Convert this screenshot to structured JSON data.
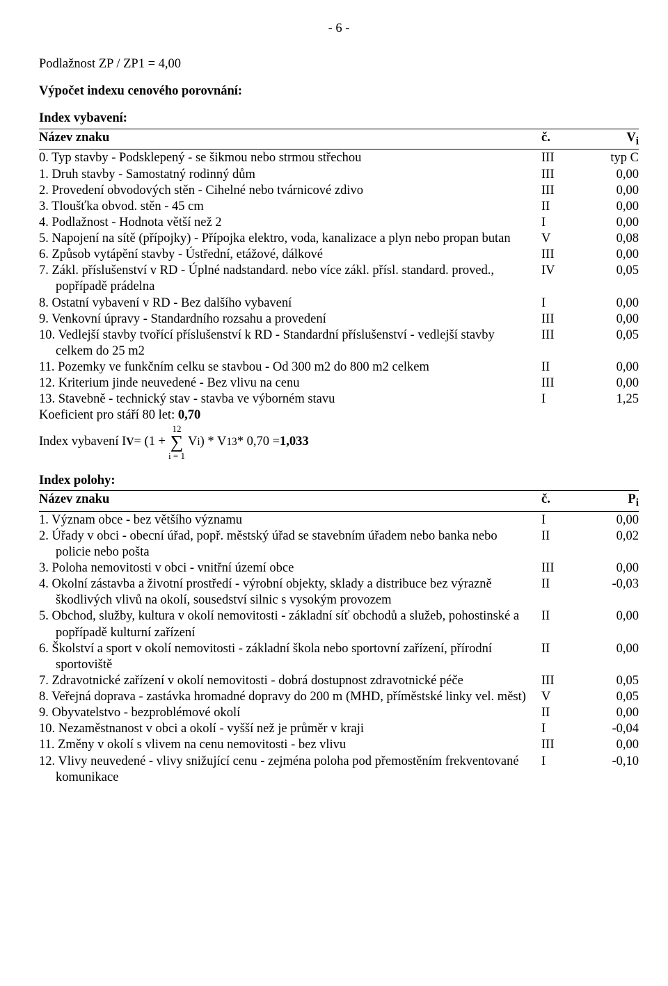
{
  "page_number": "- 6 -",
  "top_line": "Podlažnost   ZP / ZP1 = 4,00",
  "calc_heading": "Výpočet indexu cenového porovnání:",
  "tables": {
    "vybaveni": {
      "title": "Index vybavení:",
      "header": {
        "name": "Název znaku",
        "c": "č.",
        "v": "Vi"
      },
      "header_sub": {
        "c_sub": "",
        "v_sub": "i"
      },
      "rows": [
        {
          "name": "0. Typ stavby - Podsklepený - se šikmou nebo strmou střechou",
          "c": "III",
          "v": "typ C"
        },
        {
          "name": "1. Druh stavby - Samostatný rodinný dům",
          "c": "III",
          "v": "0,00"
        },
        {
          "name": "2. Provedení obvodových stěn - Cihelné nebo tvárnicové zdivo",
          "c": "III",
          "v": "0,00"
        },
        {
          "name": "3. Tloušťka obvod. stěn - 45 cm",
          "c": "II",
          "v": "0,00"
        },
        {
          "name": "4. Podlažnost - Hodnota větší než 2",
          "c": "I",
          "v": "0,00"
        },
        {
          "name": "5. Napojení na sítě (přípojky) - Přípojka elektro, voda,  kanalizace  a plyn nebo propan butan",
          "c": "V",
          "v": "0,08"
        },
        {
          "name": "6. Způsob vytápění stavby - Ústřední, etážové, dálkové",
          "c": "III",
          "v": "0,00"
        },
        {
          "name": "7. Zákl. příslušenství v RD - Úplné nadstandard. nebo více zákl. přísl. standard. proved., popřípadě prádelna",
          "c": "IV",
          "v": "0,05"
        },
        {
          "name": "8. Ostatní vybavení v RD - Bez dalšího vybavení",
          "c": "I",
          "v": "0,00"
        },
        {
          "name": "9. Venkovní úpravy - Standardního rozsahu a provedení",
          "c": "III",
          "v": "0,00"
        },
        {
          "name": "10. Vedlejší stavby tvořící příslušenství k RD - Standardní příslušenství - vedlejší stavby celkem  do 25 m2",
          "c": "III",
          "v": "0,05"
        },
        {
          "name": "11. Pozemky ve funkčním celku  se stavbou - Od 300 m2 do 800 m2 celkem",
          "c": "II",
          "v": "0,00"
        },
        {
          "name": "12. Kriterium jinde neuvedené - Bez vlivu na cenu",
          "c": "III",
          "v": "0,00"
        },
        {
          "name": "13. Stavebně - technický stav - stavba ve výborném stavu",
          "c": "I",
          "v": "1,25"
        }
      ],
      "coef_line_prefix": "Koeficient pro stáří 80 let:   ",
      "coef_value": "0,70",
      "formula": {
        "lhs1": "Index vybavení I",
        "lhs_sub1": "V",
        "eq": " = (1 + ",
        "sum_top": "12",
        "sum_bottom": "i = 1",
        "mid": " V",
        "mid_sub": "i",
        "mid2": " ) * V",
        "mid2_sub": "13",
        "tail": "  * 0,70 = ",
        "result": "1,033"
      }
    },
    "polohy": {
      "title": "Index polohy:",
      "header": {
        "name": "Název znaku",
        "c": "č.",
        "v": "Pi"
      },
      "rows": [
        {
          "name": "1. Význam obce - bez většího významu",
          "c": "I",
          "v": "0,00"
        },
        {
          "name": "2. Úřady v obci - obecní úřad, popř. městský úřad se stavebním úřadem nebo banka nebo policie nebo pošta",
          "c": "II",
          "v": "0,02"
        },
        {
          "name": "3. Poloha nemovitosti v obci - vnitřní území obce",
          "c": "III",
          "v": "0,00"
        },
        {
          "name": "4. Okolní zástavba a životní prostředí - výrobní objekty, sklady a distribuce bez výrazně škodlivých vlivů na okolí, sousedství silnic s vysokým provozem",
          "c": "II",
          "v": "-0,03"
        },
        {
          "name": "5. Obchod, služby, kultura v okolí nemovitosti - základní síť obchodů a služeb, pohostinské a popřípadě kulturní zařízení",
          "c": "II",
          "v": "0,00"
        },
        {
          "name": "6. Školství a sport v okolí nemovitosti - základní škola nebo sportovní zařízení, přírodní sportoviště",
          "c": "II",
          "v": "0,00"
        },
        {
          "name": "7. Zdravotnické zařízení v okolí nemovitosti - dobrá dostupnost zdravotnické péče",
          "c": "III",
          "v": "0,05"
        },
        {
          "name": "8. Veřejná doprava - zastávka hromadné dopravy do 200 m (MHD, příměstské linky vel. měst)",
          "c": "V",
          "v": "0,05"
        },
        {
          "name": "9. Obyvatelstvo - bezproblémové okolí",
          "c": "II",
          "v": "0,00"
        },
        {
          "name": "10. Nezaměstnanost v obci a okolí - vyšší než je průměr v kraji",
          "c": "I",
          "v": "-0,04"
        },
        {
          "name": "11. Změny v okolí s vlivem na cenu nemovitosti - bez vlivu",
          "c": "III",
          "v": "0,00"
        },
        {
          "name": "12. Vlivy neuvedené - vlivy snižující cenu - zejména poloha pod přemostěním frekventované komunikace",
          "c": "I",
          "v": "-0,10"
        }
      ]
    }
  }
}
